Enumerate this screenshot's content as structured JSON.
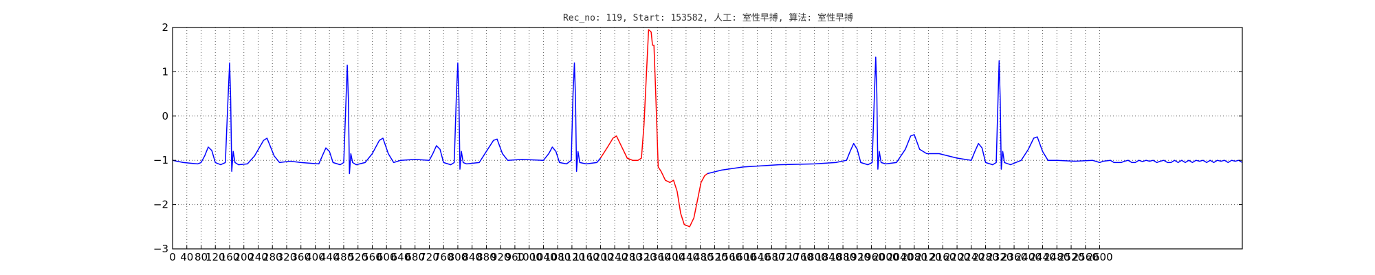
{
  "chart_data": {
    "type": "line",
    "title": "Rec_no: 119, Start: 153582, 人工: 室性早搏, 算法: 室性早搏",
    "xlabel": "",
    "ylabel": "",
    "xlim": [
      0,
      3000
    ],
    "ylim": [
      -3,
      2
    ],
    "grid": true,
    "x_ticks": [
      0,
      40,
      80,
      120,
      160,
      200,
      240,
      280,
      320,
      360,
      400,
      440,
      480,
      520,
      560,
      600,
      640,
      680,
      720,
      760,
      800,
      840,
      880,
      920,
      960,
      1000,
      1040,
      1080,
      1120,
      1160,
      1200,
      1240,
      1280,
      1320,
      1360,
      1400,
      1440,
      1480,
      1520,
      1560,
      1600,
      1640,
      1680,
      1720,
      1760,
      1800,
      1840,
      1880,
      1920,
      1960,
      2000,
      2040,
      2080,
      2120,
      2160,
      2200,
      2240,
      2280,
      2320,
      2360,
      2400,
      2440,
      2480,
      2520,
      2560,
      2600
    ],
    "y_ticks": [
      -3,
      -2,
      -1,
      0,
      1,
      2
    ],
    "series": [
      {
        "color": "#0000ff",
        "points": [
          [
            0,
            -1.0
          ],
          [
            30,
            -1.05
          ],
          [
            70,
            -1.08
          ],
          [
            80,
            -1.05
          ],
          [
            90,
            -0.9
          ],
          [
            100,
            -0.7
          ],
          [
            110,
            -0.78
          ],
          [
            120,
            -1.05
          ],
          [
            135,
            -1.1
          ],
          [
            148,
            -1.05
          ],
          [
            155,
            0.3
          ],
          [
            160,
            1.2
          ],
          [
            163,
            0.4
          ],
          [
            166,
            -1.25
          ],
          [
            170,
            -0.8
          ],
          [
            175,
            -1.05
          ],
          [
            185,
            -1.1
          ],
          [
            210,
            -1.08
          ],
          [
            230,
            -0.9
          ],
          [
            255,
            -0.55
          ],
          [
            265,
            -0.5
          ],
          [
            285,
            -0.9
          ],
          [
            300,
            -1.05
          ],
          [
            330,
            -1.02
          ],
          [
            360,
            -1.05
          ],
          [
            410,
            -1.08
          ],
          [
            420,
            -0.9
          ],
          [
            430,
            -0.72
          ],
          [
            440,
            -0.8
          ],
          [
            450,
            -1.05
          ],
          [
            470,
            -1.1
          ],
          [
            480,
            -1.05
          ],
          [
            487,
            0.5
          ],
          [
            490,
            1.15
          ],
          [
            493,
            0.4
          ],
          [
            496,
            -1.3
          ],
          [
            500,
            -0.85
          ],
          [
            505,
            -1.05
          ],
          [
            515,
            -1.1
          ],
          [
            540,
            -1.05
          ],
          [
            560,
            -0.85
          ],
          [
            580,
            -0.55
          ],
          [
            590,
            -0.5
          ],
          [
            605,
            -0.85
          ],
          [
            620,
            -1.05
          ],
          [
            640,
            -1.0
          ],
          [
            680,
            -0.98
          ],
          [
            720,
            -1.0
          ],
          [
            730,
            -0.85
          ],
          [
            740,
            -0.67
          ],
          [
            750,
            -0.75
          ],
          [
            760,
            -1.05
          ],
          [
            780,
            -1.1
          ],
          [
            790,
            -1.05
          ],
          [
            796,
            0.5
          ],
          [
            800,
            1.2
          ],
          [
            803,
            0.4
          ],
          [
            806,
            -1.2
          ],
          [
            810,
            -0.8
          ],
          [
            815,
            -1.05
          ],
          [
            825,
            -1.08
          ],
          [
            860,
            -1.05
          ],
          [
            880,
            -0.8
          ],
          [
            900,
            -0.55
          ],
          [
            910,
            -0.52
          ],
          [
            925,
            -0.85
          ],
          [
            940,
            -1.0
          ],
          [
            980,
            -0.98
          ],
          [
            1040,
            -1.0
          ],
          [
            1055,
            -0.85
          ],
          [
            1065,
            -0.7
          ],
          [
            1075,
            -0.8
          ],
          [
            1085,
            -1.05
          ],
          [
            1105,
            -1.08
          ],
          [
            1118,
            -1.0
          ],
          [
            1123,
            0.5
          ],
          [
            1127,
            1.2
          ],
          [
            1130,
            0.4
          ],
          [
            1133,
            -1.25
          ],
          [
            1137,
            -0.8
          ],
          [
            1142,
            -1.05
          ],
          [
            1160,
            -1.08
          ],
          [
            1190,
            -1.05
          ],
          [
            1200,
            -0.95
          ]
        ]
      },
      {
        "color": "#ff0000",
        "points": [
          [
            1200,
            -0.95
          ],
          [
            1220,
            -0.7
          ],
          [
            1235,
            -0.5
          ],
          [
            1245,
            -0.45
          ],
          [
            1260,
            -0.7
          ],
          [
            1275,
            -0.95
          ],
          [
            1290,
            -1.0
          ],
          [
            1305,
            -1.0
          ],
          [
            1315,
            -0.95
          ],
          [
            1322,
            -0.2
          ],
          [
            1328,
            0.8
          ],
          [
            1335,
            1.95
          ],
          [
            1342,
            1.9
          ],
          [
            1346,
            1.6
          ],
          [
            1350,
            1.6
          ],
          [
            1355,
            0.5
          ],
          [
            1362,
            -1.15
          ],
          [
            1370,
            -1.25
          ],
          [
            1382,
            -1.45
          ],
          [
            1395,
            -1.5
          ],
          [
            1405,
            -1.45
          ],
          [
            1415,
            -1.7
          ],
          [
            1425,
            -2.2
          ],
          [
            1435,
            -2.45
          ],
          [
            1450,
            -2.5
          ],
          [
            1462,
            -2.3
          ],
          [
            1472,
            -1.9
          ],
          [
            1482,
            -1.5
          ],
          [
            1492,
            -1.35
          ],
          [
            1500,
            -1.3
          ]
        ]
      },
      {
        "color": "#0000ff",
        "points": [
          [
            1500,
            -1.3
          ],
          [
            1540,
            -1.22
          ],
          [
            1600,
            -1.15
          ],
          [
            1700,
            -1.1
          ],
          [
            1800,
            -1.08
          ],
          [
            1860,
            -1.05
          ],
          [
            1890,
            -1.0
          ],
          [
            1900,
            -0.8
          ],
          [
            1910,
            -0.62
          ],
          [
            1920,
            -0.75
          ],
          [
            1930,
            -1.05
          ],
          [
            1950,
            -1.1
          ],
          [
            1962,
            -1.05
          ],
          [
            1968,
            0.4
          ],
          [
            1972,
            1.33
          ],
          [
            1975,
            0.5
          ],
          [
            1978,
            -1.2
          ],
          [
            1982,
            -0.8
          ],
          [
            1987,
            -1.05
          ],
          [
            2000,
            -1.08
          ],
          [
            2030,
            -1.05
          ],
          [
            2055,
            -0.75
          ],
          [
            2070,
            -0.45
          ],
          [
            2080,
            -0.42
          ],
          [
            2095,
            -0.75
          ],
          [
            2115,
            -0.85
          ],
          [
            2150,
            -0.85
          ],
          [
            2200,
            -0.95
          ],
          [
            2240,
            -1.0
          ],
          [
            2250,
            -0.8
          ],
          [
            2260,
            -0.62
          ],
          [
            2270,
            -0.72
          ],
          [
            2280,
            -1.05
          ],
          [
            2300,
            -1.1
          ],
          [
            2310,
            -1.05
          ],
          [
            2315,
            0.4
          ],
          [
            2318,
            1.25
          ],
          [
            2321,
            0.4
          ],
          [
            2324,
            -1.2
          ],
          [
            2328,
            -0.8
          ],
          [
            2333,
            -1.05
          ],
          [
            2350,
            -1.1
          ],
          [
            2380,
            -1.0
          ],
          [
            2400,
            -0.75
          ],
          [
            2415,
            -0.5
          ],
          [
            2425,
            -0.47
          ],
          [
            2440,
            -0.8
          ],
          [
            2455,
            -1.0
          ],
          [
            2480,
            -1.0
          ],
          [
            2530,
            -1.02
          ],
          [
            2580,
            -1.0
          ],
          [
            2600,
            -1.05
          ],
          [
            2610,
            -1.02
          ],
          [
            2630,
            -1.0
          ],
          [
            2640,
            -1.05
          ],
          [
            2650,
            -1.05
          ],
          [
            2660,
            -1.05
          ],
          [
            2670,
            -1.02
          ],
          [
            2680,
            -1.0
          ],
          [
            2690,
            -1.05
          ],
          [
            2700,
            -1.05
          ],
          [
            2710,
            -1.0
          ],
          [
            2720,
            -1.03
          ],
          [
            2730,
            -1.0
          ],
          [
            2740,
            -1.02
          ],
          [
            2750,
            -1.0
          ],
          [
            2760,
            -1.05
          ],
          [
            2770,
            -1.02
          ],
          [
            2780,
            -1.0
          ],
          [
            2790,
            -1.05
          ],
          [
            2800,
            -1.05
          ],
          [
            2810,
            -1.0
          ],
          [
            2820,
            -1.05
          ],
          [
            2830,
            -1.0
          ],
          [
            2840,
            -1.05
          ],
          [
            2850,
            -1.0
          ],
          [
            2860,
            -1.05
          ],
          [
            2870,
            -1.0
          ],
          [
            2880,
            -1.02
          ],
          [
            2890,
            -1.0
          ],
          [
            2900,
            -1.05
          ],
          [
            2910,
            -1.0
          ],
          [
            2920,
            -1.05
          ],
          [
            2930,
            -1.0
          ],
          [
            2940,
            -1.02
          ],
          [
            2950,
            -1.0
          ],
          [
            2960,
            -1.05
          ],
          [
            2970,
            -1.0
          ],
          [
            2980,
            -1.02
          ],
          [
            2990,
            -1.0
          ],
          [
            3000,
            -1.05
          ]
        ]
      }
    ]
  }
}
